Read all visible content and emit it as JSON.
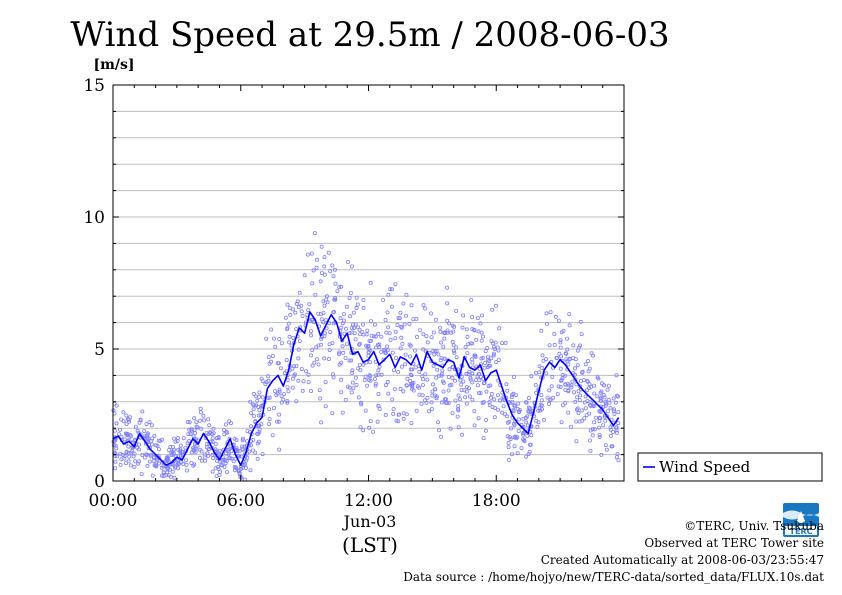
{
  "chart_data": {
    "type": "line",
    "title": "Wind Speed at 29.5m / 2008-06-03",
    "unit_label": "[m/s]",
    "ylim": [
      0,
      15
    ],
    "yticks": [
      "0",
      "5",
      "10",
      "15"
    ],
    "xlim": [
      0,
      24
    ],
    "xticks": [
      {
        "x": 0,
        "label": "00:00"
      },
      {
        "x": 6,
        "label": "06:00"
      },
      {
        "x": 12,
        "label": "12:00"
      },
      {
        "x": 18,
        "label": "18:00"
      }
    ],
    "date_label": "Jun-03",
    "xlabel": "(LST)",
    "grid": true,
    "legend_position": "right",
    "series": [
      {
        "name": "Wind Speed",
        "color": "#0000ff",
        "scatter_color": "#8080ff",
        "x": [
          0.0,
          0.25,
          0.5,
          0.75,
          1.0,
          1.25,
          1.5,
          1.75,
          2.0,
          2.25,
          2.5,
          2.75,
          3.0,
          3.25,
          3.5,
          3.75,
          4.0,
          4.25,
          4.5,
          4.75,
          5.0,
          5.25,
          5.5,
          5.75,
          6.0,
          6.25,
          6.5,
          6.75,
          7.0,
          7.25,
          7.5,
          7.75,
          8.0,
          8.25,
          8.5,
          8.75,
          9.0,
          9.25,
          9.5,
          9.75,
          10.0,
          10.25,
          10.5,
          10.75,
          11.0,
          11.25,
          11.5,
          11.75,
          12.0,
          12.25,
          12.5,
          12.75,
          13.0,
          13.25,
          13.5,
          13.75,
          14.0,
          14.25,
          14.5,
          14.75,
          15.0,
          15.25,
          15.5,
          15.75,
          16.0,
          16.25,
          16.5,
          16.75,
          17.0,
          17.25,
          17.5,
          17.75,
          18.0,
          18.25,
          18.5,
          18.75,
          19.0,
          19.25,
          19.5,
          19.75,
          20.0,
          20.25,
          20.5,
          20.75,
          21.0,
          21.25,
          21.5,
          21.75,
          22.0,
          22.25,
          22.5,
          22.75,
          23.0,
          23.25,
          23.5,
          23.75
        ],
        "values": [
          1.6,
          1.7,
          1.4,
          1.5,
          1.3,
          1.8,
          1.5,
          1.2,
          1.0,
          0.8,
          0.6,
          0.7,
          0.9,
          0.8,
          1.2,
          1.6,
          1.4,
          1.8,
          1.5,
          1.1,
          0.8,
          1.2,
          1.6,
          1.0,
          0.6,
          1.1,
          1.8,
          2.2,
          2.4,
          3.5,
          3.8,
          4.0,
          3.6,
          4.2,
          5.2,
          5.8,
          5.6,
          6.4,
          6.1,
          5.5,
          5.9,
          6.3,
          6.0,
          5.3,
          5.6,
          4.8,
          4.9,
          4.5,
          4.6,
          4.9,
          4.4,
          4.6,
          4.8,
          4.3,
          4.7,
          4.6,
          4.4,
          4.8,
          4.2,
          4.9,
          4.5,
          4.4,
          4.3,
          4.6,
          4.5,
          3.9,
          4.7,
          4.3,
          4.2,
          4.4,
          3.8,
          4.1,
          4.2,
          3.6,
          3.0,
          2.5,
          2.2,
          2.0,
          1.8,
          2.6,
          3.4,
          4.2,
          4.5,
          4.3,
          4.6,
          4.4,
          4.1,
          3.8,
          3.5,
          3.3,
          3.1,
          2.9,
          2.7,
          2.4,
          2.1,
          2.4
        ]
      }
    ]
  },
  "credits": {
    "copyright": "©TERC, Univ. Tsukuba",
    "observed": "Observed at TERC Tower site",
    "created": "Created Automatically at 2008-06-03/23:55:47",
    "source": "Data source : /home/hojyo/new/TERC-data/sorted_data/FLUX.10s.dat"
  },
  "logo": {
    "text": "TERC",
    "color": "#1a78c2"
  }
}
